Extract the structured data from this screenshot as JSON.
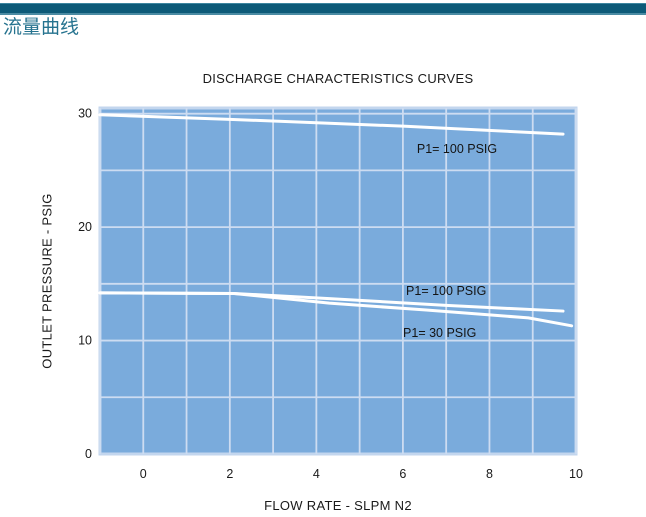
{
  "page": {
    "section_title": "流量曲线",
    "top_bar_color": "#0d5a78",
    "section_title_color": "#26738f"
  },
  "chart_data": {
    "type": "line",
    "title": "DISCHARGE CHARACTERISTICS CURVES",
    "xlabel": "FLOW RATE - SLPM N2",
    "ylabel": "OUTLET PRESSURE - PSIG",
    "xlim": [
      -1,
      10
    ],
    "ylim": [
      0,
      30.5
    ],
    "x_ticks": [
      0,
      2,
      4,
      6,
      8,
      10
    ],
    "y_ticks": [
      0,
      10,
      20,
      30
    ],
    "x_grid_step": 1,
    "y_grid_step": 5,
    "grid": true,
    "legend_position": "inline-labels",
    "colors": {
      "plot_bg": "#7aabdc",
      "grid": "#cddcf1",
      "frame": "#c3d6ee",
      "line": "#ffffff"
    },
    "series": [
      {
        "name": "p1-100-psig-high-range",
        "label": "P1= 100 PSIG",
        "points": [
          [
            -1,
            29.9
          ],
          [
            2,
            29.5
          ],
          [
            6,
            28.9
          ],
          [
            9.7,
            28.2
          ]
        ],
        "label_anchor": [
          7.25,
          26.9
        ]
      },
      {
        "name": "p1-100-psig-low-range",
        "label": "P1= 100 PSIG",
        "points": [
          [
            -1,
            14.2
          ],
          [
            2.1,
            14.15
          ],
          [
            4.3,
            13.7
          ],
          [
            7,
            13.1
          ],
          [
            9.7,
            12.6
          ]
        ],
        "label_anchor": [
          7.0,
          14.4
        ]
      },
      {
        "name": "p1-30-psig",
        "label": "P1= 30 PSIG",
        "points": [
          [
            -1,
            14.2
          ],
          [
            2.1,
            14.15
          ],
          [
            4.3,
            13.3
          ],
          [
            6.5,
            12.7
          ],
          [
            8.9,
            12.0
          ],
          [
            9.9,
            11.3
          ]
        ],
        "label_anchor": [
          6.85,
          10.7
        ]
      }
    ]
  }
}
